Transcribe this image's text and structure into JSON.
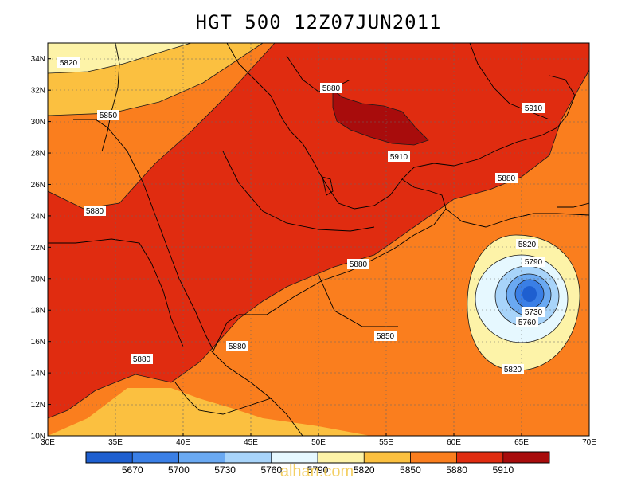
{
  "title": "HGT 500 12Z07JUN2011",
  "watermark": "alhan.com",
  "map": {
    "lon_range": [
      30,
      70
    ],
    "lat_range": [
      10,
      35
    ],
    "lon_ticks": [
      "30E",
      "35E",
      "40E",
      "45E",
      "50E",
      "55E",
      "60E",
      "65E",
      "70E"
    ],
    "lat_ticks": [
      "10N",
      "12N",
      "14N",
      "16N",
      "18N",
      "20N",
      "22N",
      "24N",
      "26N",
      "28N",
      "30N",
      "32N",
      "34N"
    ],
    "contour_labels": [
      "5820",
      "5850",
      "5880",
      "5910",
      "5910",
      "5880",
      "5880",
      "5880",
      "5850",
      "5880",
      "5880",
      "5820",
      "5790",
      "5730",
      "5760",
      "5820"
    ]
  },
  "colorbar": {
    "colors": [
      "#1e5fd0",
      "#3a7fe6",
      "#6aa9f2",
      "#a8d4fa",
      "#e6f8ff",
      "#fdf3a8",
      "#fbc040",
      "#fa7e1e",
      "#e02c10",
      "#a80c0c"
    ],
    "labels": [
      "5670",
      "5700",
      "5730",
      "5760",
      "5790",
      "5820",
      "5850",
      "5880",
      "5910"
    ]
  }
}
